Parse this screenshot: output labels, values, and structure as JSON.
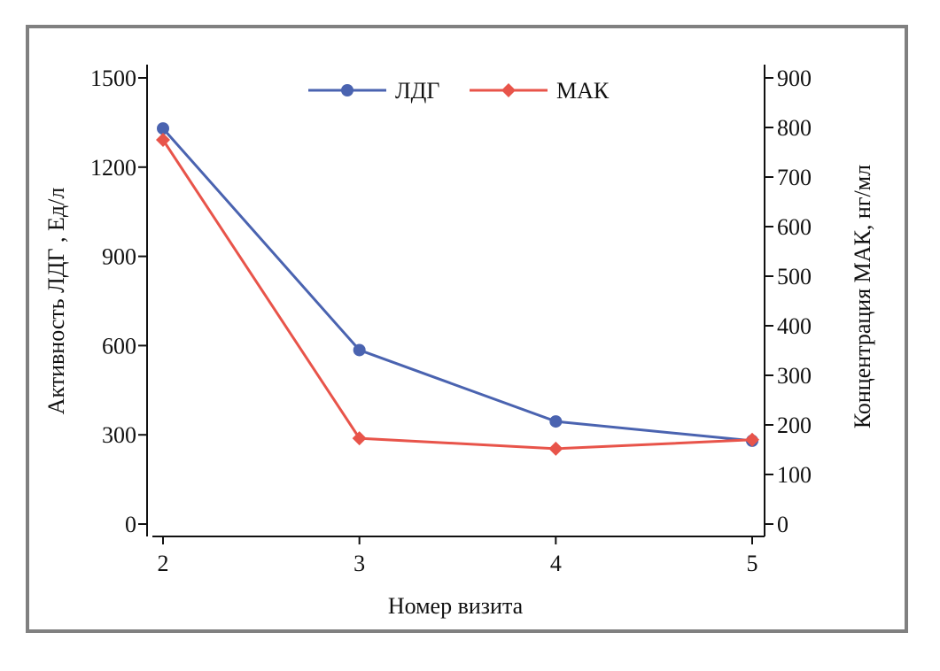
{
  "chart_data": {
    "type": "line",
    "xlabel": "Номер визита",
    "ylabel_left": "Активность ЛДГ , Ед/л",
    "ylabel_right": "Концентрация МАК, нг/мл",
    "x": [
      2,
      3,
      4,
      5
    ],
    "x_ticks": [
      "2",
      "3",
      "4",
      "5"
    ],
    "ylim_left": [
      0,
      1500
    ],
    "yticks_left": [
      "0",
      "300",
      "600",
      "900",
      "1200",
      "1500"
    ],
    "ylim_right": [
      0,
      900
    ],
    "yticks_right": [
      "0",
      "100",
      "200",
      "300",
      "400",
      "500",
      "600",
      "700",
      "800",
      "900"
    ],
    "grid": false,
    "legend_position": "top-center",
    "series": [
      {
        "name": "ЛДГ",
        "axis": "left",
        "color": "#4a63b0",
        "marker": "circle",
        "values": [
          1330,
          585,
          345,
          280
        ]
      },
      {
        "name": "МАК",
        "axis": "right",
        "color": "#e8544a",
        "marker": "diamond",
        "values": [
          775,
          173,
          152,
          170
        ]
      }
    ]
  },
  "colors": {
    "frame": "#808080",
    "axis": "#111111"
  }
}
